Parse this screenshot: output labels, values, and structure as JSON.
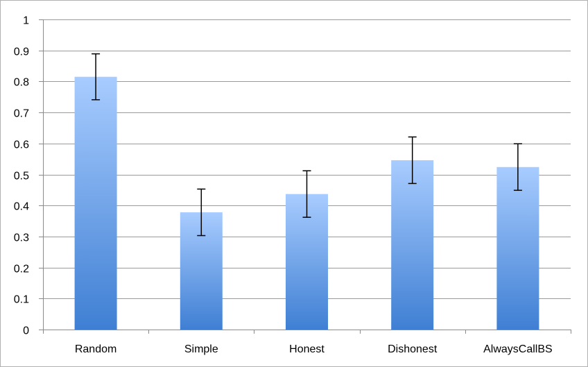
{
  "chart_data": {
    "type": "bar",
    "categories": [
      "Random",
      "Simple",
      "Honest",
      "Dishonest",
      "AlwaysCallBS"
    ],
    "values": [
      0.815,
      0.378,
      0.437,
      0.546,
      0.524
    ],
    "error_bars": {
      "upper": [
        0.889,
        0.453,
        0.512,
        0.621,
        0.599
      ],
      "lower": [
        0.741,
        0.303,
        0.362,
        0.471,
        0.449
      ]
    },
    "title": "",
    "xlabel": "",
    "ylabel": "",
    "ylim": [
      0,
      1
    ],
    "yticks": [
      0,
      0.1,
      0.2,
      0.3,
      0.4,
      0.5,
      0.6,
      0.7,
      0.8,
      0.9,
      1
    ],
    "ytick_labels": [
      "0",
      "0.1",
      "0.2",
      "0.3",
      "0.4",
      "0.5",
      "0.6",
      "0.7",
      "0.8",
      "0.9",
      "1"
    ],
    "grid": true,
    "legend": "none",
    "colors": {
      "bar_top": "#a8ccff",
      "bar_bottom": "#3f7fd3",
      "grid": "#9a9a9a",
      "axis": "#8a8a8a",
      "error_bar": "#000000",
      "frame": "#b0b0b0"
    }
  }
}
